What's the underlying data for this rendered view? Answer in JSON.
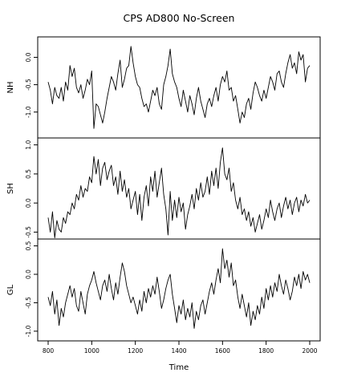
{
  "chart_data": {
    "type": "line",
    "title": "CPS AD800 No-Screen",
    "xlabel": "Time",
    "xlim": [
      800,
      2000
    ],
    "x_ticks": [
      "800",
      "1000",
      "1200",
      "1400",
      "1600",
      "1800",
      "2000"
    ],
    "grid": false,
    "panels": [
      {
        "name": "NH",
        "ylim": [
          -1.4,
          0.3
        ],
        "y_ticks": [
          "0.0",
          "-0.5",
          "-1.0"
        ],
        "series": [
          {
            "x": [
              800,
              810,
              820,
              830,
              840,
              850,
              860,
              870,
              880,
              890,
              900,
              910,
              920,
              930,
              940,
              950,
              960,
              970,
              980,
              990,
              1000,
              1010,
              1020,
              1030,
              1040,
              1050,
              1060,
              1070,
              1080,
              1090,
              1100,
              1110,
              1120,
              1130,
              1140,
              1150,
              1160,
              1170,
              1180,
              1190,
              1200,
              1210,
              1220,
              1230,
              1240,
              1250,
              1260,
              1270,
              1280,
              1290,
              1300,
              1310,
              1320,
              1330,
              1340,
              1350,
              1360,
              1370,
              1380,
              1390,
              1400,
              1410,
              1420,
              1430,
              1440,
              1450,
              1460,
              1470,
              1480,
              1490,
              1500,
              1510,
              1520,
              1530,
              1540,
              1550,
              1560,
              1570,
              1580,
              1590,
              1600,
              1610,
              1620,
              1630,
              1640,
              1650,
              1660,
              1670,
              1680,
              1690,
              1700,
              1710,
              1720,
              1730,
              1740,
              1750,
              1760,
              1770,
              1780,
              1790,
              1800,
              1810,
              1820,
              1830,
              1840,
              1850,
              1860,
              1870,
              1880,
              1890,
              1900,
              1910,
              1920,
              1930,
              1940,
              1950,
              1960,
              1970,
              1980,
              1990,
              2000
            ],
            "y": [
              -0.45,
              -0.6,
              -0.85,
              -0.55,
              -0.7,
              -0.75,
              -0.55,
              -0.8,
              -0.45,
              -0.6,
              -0.15,
              -0.35,
              -0.2,
              -0.55,
              -0.65,
              -0.5,
              -0.75,
              -0.6,
              -0.4,
              -0.5,
              -0.25,
              -1.3,
              -0.85,
              -0.9,
              -1.05,
              -1.2,
              -1.0,
              -0.75,
              -0.55,
              -0.35,
              -0.45,
              -0.6,
              -0.3,
              -0.05,
              -0.55,
              -0.4,
              -0.2,
              -0.15,
              0.2,
              -0.1,
              -0.35,
              -0.5,
              -0.55,
              -0.75,
              -0.9,
              -0.85,
              -1.0,
              -0.8,
              -0.6,
              -0.7,
              -0.55,
              -0.85,
              -0.95,
              -0.5,
              -0.35,
              -0.15,
              0.15,
              -0.3,
              -0.45,
              -0.55,
              -0.75,
              -0.9,
              -0.6,
              -0.8,
              -1.0,
              -0.7,
              -0.85,
              -1.05,
              -0.75,
              -0.55,
              -0.8,
              -0.95,
              -1.1,
              -0.85,
              -0.75,
              -0.9,
              -0.7,
              -0.55,
              -0.8,
              -0.5,
              -0.35,
              -0.45,
              -0.25,
              -0.6,
              -0.55,
              -0.8,
              -0.7,
              -0.95,
              -1.2,
              -1.0,
              -1.1,
              -0.85,
              -0.75,
              -0.95,
              -0.65,
              -0.45,
              -0.55,
              -0.7,
              -0.8,
              -0.6,
              -0.75,
              -0.55,
              -0.35,
              -0.45,
              -0.6,
              -0.3,
              -0.25,
              -0.45,
              -0.55,
              -0.3,
              -0.1,
              0.05,
              -0.2,
              -0.1,
              -0.3,
              0.1,
              -0.05,
              0.05,
              -0.45,
              -0.2,
              -0.15
            ]
          }
        ]
      },
      {
        "name": "SH",
        "ylim": [
          -0.55,
          1.05
        ],
        "y_ticks": [
          "1.0",
          "0.5",
          "0.0",
          "-0.5"
        ],
        "series": [
          {
            "x": [
              800,
              810,
              820,
              830,
              840,
              850,
              860,
              870,
              880,
              890,
              900,
              910,
              920,
              930,
              940,
              950,
              960,
              970,
              980,
              990,
              1000,
              1010,
              1020,
              1030,
              1040,
              1050,
              1060,
              1070,
              1080,
              1090,
              1100,
              1110,
              1120,
              1130,
              1140,
              1150,
              1160,
              1170,
              1180,
              1190,
              1200,
              1210,
              1220,
              1230,
              1240,
              1250,
              1260,
              1270,
              1280,
              1290,
              1300,
              1310,
              1320,
              1330,
              1340,
              1350,
              1360,
              1370,
              1380,
              1390,
              1400,
              1410,
              1420,
              1430,
              1440,
              1450,
              1460,
              1470,
              1480,
              1490,
              1500,
              1510,
              1520,
              1530,
              1540,
              1550,
              1560,
              1570,
              1580,
              1590,
              1600,
              1610,
              1620,
              1630,
              1640,
              1650,
              1660,
              1670,
              1680,
              1690,
              1700,
              1710,
              1720,
              1730,
              1740,
              1750,
              1760,
              1770,
              1780,
              1790,
              1800,
              1810,
              1820,
              1830,
              1840,
              1850,
              1860,
              1870,
              1880,
              1890,
              1900,
              1910,
              1920,
              1930,
              1940,
              1950,
              1960,
              1970,
              1980,
              1990,
              2000
            ],
            "y": [
              -0.25,
              -0.5,
              -0.15,
              -0.6,
              -0.3,
              -0.45,
              -0.5,
              -0.25,
              -0.35,
              -0.15,
              -0.2,
              0.0,
              -0.1,
              0.15,
              0.05,
              0.3,
              0.1,
              0.25,
              0.2,
              0.45,
              0.35,
              0.8,
              0.5,
              0.75,
              0.3,
              0.6,
              0.7,
              0.4,
              0.55,
              0.65,
              0.3,
              0.45,
              0.15,
              0.55,
              0.2,
              0.4,
              0.1,
              0.25,
              -0.1,
              0.05,
              0.2,
              -0.2,
              0.15,
              -0.3,
              0.1,
              0.3,
              -0.05,
              0.45,
              0.2,
              0.55,
              0.1,
              0.35,
              0.6,
              0.15,
              -0.1,
              -0.55,
              0.2,
              -0.3,
              0.05,
              -0.25,
              0.1,
              -0.15,
              0.0,
              -0.45,
              -0.2,
              -0.05,
              0.15,
              -0.1,
              0.25,
              0.05,
              0.35,
              0.1,
              0.2,
              0.45,
              0.15,
              0.55,
              0.3,
              0.6,
              0.25,
              0.7,
              0.95,
              0.5,
              0.4,
              0.6,
              0.2,
              0.35,
              0.05,
              -0.1,
              0.1,
              -0.2,
              -0.1,
              -0.3,
              -0.15,
              -0.4,
              -0.25,
              -0.5,
              -0.35,
              -0.2,
              -0.45,
              -0.3,
              -0.1,
              -0.25,
              0.05,
              -0.15,
              -0.3,
              -0.1,
              0.0,
              -0.25,
              -0.05,
              0.1,
              -0.1,
              0.05,
              -0.2,
              0.0,
              0.1,
              -0.15,
              0.05,
              -0.05,
              0.15,
              0.0,
              0.05
            ]
          }
        ]
      },
      {
        "name": "GL",
        "ylim": [
          -1.1,
          0.55
        ],
        "y_ticks": [
          "0.5",
          "0.0",
          "-0.5",
          "-1.0"
        ],
        "series": [
          {
            "x": [
              800,
              810,
              820,
              830,
              840,
              850,
              860,
              870,
              880,
              890,
              900,
              910,
              920,
              930,
              940,
              950,
              960,
              970,
              980,
              990,
              1000,
              1010,
              1020,
              1030,
              1040,
              1050,
              1060,
              1070,
              1080,
              1090,
              1100,
              1110,
              1120,
              1130,
              1140,
              1150,
              1160,
              1170,
              1180,
              1190,
              1200,
              1210,
              1220,
              1230,
              1240,
              1250,
              1260,
              1270,
              1280,
              1290,
              1300,
              1310,
              1320,
              1330,
              1340,
              1350,
              1360,
              1370,
              1380,
              1390,
              1400,
              1410,
              1420,
              1430,
              1440,
              1450,
              1460,
              1470,
              1480,
              1490,
              1500,
              1510,
              1520,
              1530,
              1540,
              1550,
              1560,
              1570,
              1580,
              1590,
              1600,
              1610,
              1620,
              1630,
              1640,
              1650,
              1660,
              1670,
              1680,
              1690,
              1700,
              1710,
              1720,
              1730,
              1740,
              1750,
              1760,
              1770,
              1780,
              1790,
              1800,
              1810,
              1820,
              1830,
              1840,
              1850,
              1860,
              1870,
              1880,
              1890,
              1900,
              1910,
              1920,
              1930,
              1940,
              1950,
              1960,
              1970,
              1980,
              1990,
              2000
            ],
            "y": [
              -0.4,
              -0.55,
              -0.3,
              -0.7,
              -0.45,
              -0.9,
              -0.6,
              -0.75,
              -0.5,
              -0.35,
              -0.2,
              -0.4,
              -0.25,
              -0.55,
              -0.65,
              -0.3,
              -0.5,
              -0.7,
              -0.35,
              -0.2,
              -0.1,
              0.05,
              -0.15,
              -0.3,
              -0.45,
              -0.2,
              -0.1,
              -0.3,
              0.0,
              -0.25,
              -0.45,
              -0.15,
              -0.35,
              -0.05,
              0.2,
              0.05,
              -0.2,
              -0.35,
              -0.5,
              -0.4,
              -0.55,
              -0.7,
              -0.45,
              -0.65,
              -0.3,
              -0.5,
              -0.25,
              -0.4,
              -0.2,
              -0.35,
              -0.05,
              -0.3,
              -0.6,
              -0.45,
              -0.25,
              -0.1,
              0.0,
              -0.35,
              -0.6,
              -0.85,
              -0.55,
              -0.7,
              -0.45,
              -0.8,
              -0.6,
              -0.75,
              -0.5,
              -0.95,
              -0.65,
              -0.8,
              -0.55,
              -0.45,
              -0.7,
              -0.5,
              -0.3,
              -0.15,
              -0.35,
              -0.1,
              0.1,
              -0.15,
              0.45,
              0.1,
              0.25,
              -0.05,
              0.2,
              -0.2,
              -0.1,
              -0.4,
              -0.6,
              -0.35,
              -0.55,
              -0.75,
              -0.5,
              -0.9,
              -0.65,
              -0.8,
              -0.55,
              -0.7,
              -0.4,
              -0.6,
              -0.25,
              -0.45,
              -0.2,
              -0.4,
              -0.15,
              -0.3,
              0.0,
              -0.2,
              -0.35,
              -0.1,
              -0.25,
              -0.45,
              -0.3,
              -0.05,
              -0.2,
              0.0,
              -0.25,
              0.05,
              -0.1,
              0.0,
              -0.15
            ]
          }
        ]
      }
    ]
  }
}
